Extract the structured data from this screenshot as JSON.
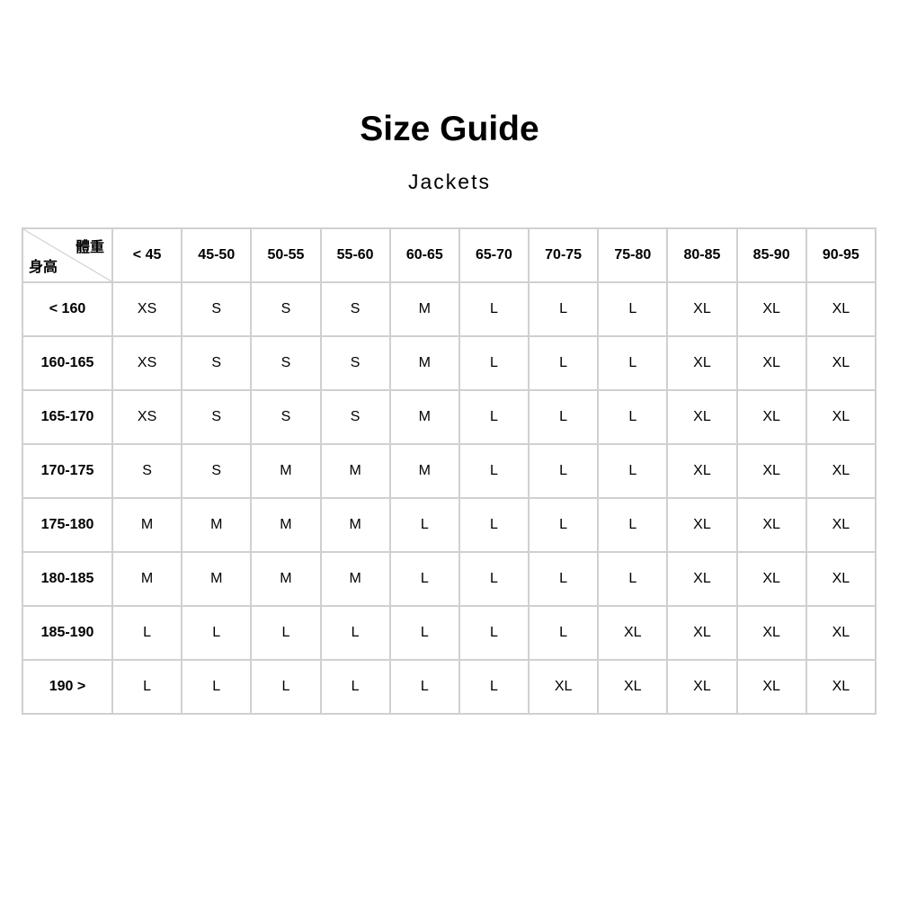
{
  "title": "Size Guide",
  "subtitle": "Jackets",
  "table": {
    "corner_weight": "體重",
    "corner_height": "身高",
    "columns": [
      "< 45",
      "45-50",
      "50-55",
      "55-60",
      "60-65",
      "65-70",
      "70-75",
      "75-80",
      "80-85",
      "85-90",
      "90-95"
    ],
    "rows": [
      {
        "label": "< 160",
        "cells": [
          "XS",
          "S",
          "S",
          "S",
          "M",
          "L",
          "L",
          "L",
          "XL",
          "XL",
          "XL"
        ]
      },
      {
        "label": "160-165",
        "cells": [
          "XS",
          "S",
          "S",
          "S",
          "M",
          "L",
          "L",
          "L",
          "XL",
          "XL",
          "XL"
        ]
      },
      {
        "label": "165-170",
        "cells": [
          "XS",
          "S",
          "S",
          "S",
          "M",
          "L",
          "L",
          "L",
          "XL",
          "XL",
          "XL"
        ]
      },
      {
        "label": "170-175",
        "cells": [
          "S",
          "S",
          "M",
          "M",
          "M",
          "L",
          "L",
          "L",
          "XL",
          "XL",
          "XL"
        ]
      },
      {
        "label": "175-180",
        "cells": [
          "M",
          "M",
          "M",
          "M",
          "L",
          "L",
          "L",
          "L",
          "XL",
          "XL",
          "XL"
        ]
      },
      {
        "label": "180-185",
        "cells": [
          "M",
          "M",
          "M",
          "M",
          "L",
          "L",
          "L",
          "L",
          "XL",
          "XL",
          "XL"
        ]
      },
      {
        "label": "185-190",
        "cells": [
          "L",
          "L",
          "L",
          "L",
          "L",
          "L",
          "L",
          "XL",
          "XL",
          "XL",
          "XL"
        ]
      },
      {
        "label": "190 >",
        "cells": [
          "L",
          "L",
          "L",
          "L",
          "L",
          "L",
          "XL",
          "XL",
          "XL",
          "XL",
          "XL"
        ]
      }
    ]
  }
}
